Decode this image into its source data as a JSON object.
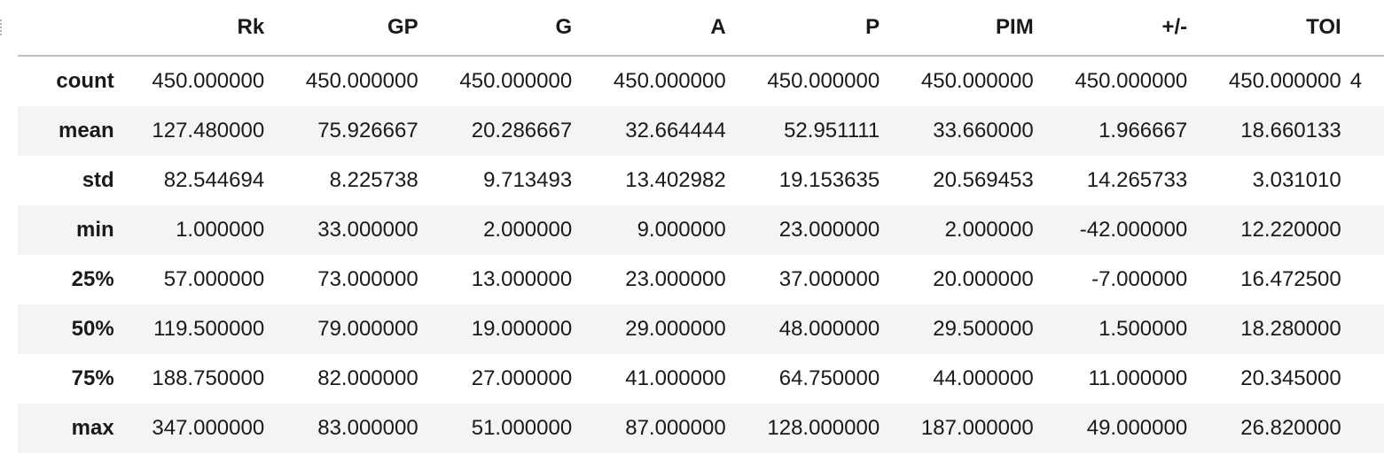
{
  "table": {
    "columns": [
      "Rk",
      "GP",
      "G",
      "A",
      "P",
      "PIM",
      "+/-",
      "TOI"
    ],
    "truncated_next_column_glyph": "4",
    "rows": [
      {
        "label": "count",
        "values": [
          "450.000000",
          "450.000000",
          "450.000000",
          "450.000000",
          "450.000000",
          "450.000000",
          "450.000000",
          "450.000000"
        ]
      },
      {
        "label": "mean",
        "values": [
          "127.480000",
          "75.926667",
          "20.286667",
          "32.664444",
          "52.951111",
          "33.660000",
          "1.966667",
          "18.660133"
        ]
      },
      {
        "label": "std",
        "values": [
          "82.544694",
          "8.225738",
          "9.713493",
          "13.402982",
          "19.153635",
          "20.569453",
          "14.265733",
          "3.031010"
        ]
      },
      {
        "label": "min",
        "values": [
          "1.000000",
          "33.000000",
          "2.000000",
          "9.000000",
          "23.000000",
          "2.000000",
          "-42.000000",
          "12.220000"
        ]
      },
      {
        "label": "25%",
        "values": [
          "57.000000",
          "73.000000",
          "13.000000",
          "23.000000",
          "37.000000",
          "20.000000",
          "-7.000000",
          "16.472500"
        ]
      },
      {
        "label": "50%",
        "values": [
          "119.500000",
          "79.000000",
          "19.000000",
          "29.000000",
          "48.000000",
          "29.500000",
          "1.500000",
          "18.280000"
        ]
      },
      {
        "label": "75%",
        "values": [
          "188.750000",
          "82.000000",
          "27.000000",
          "41.000000",
          "64.750000",
          "44.000000",
          "11.000000",
          "20.345000"
        ]
      },
      {
        "label": "max",
        "values": [
          "347.000000",
          "83.000000",
          "51.000000",
          "87.000000",
          "128.000000",
          "187.000000",
          "49.000000",
          "26.820000"
        ]
      }
    ]
  }
}
